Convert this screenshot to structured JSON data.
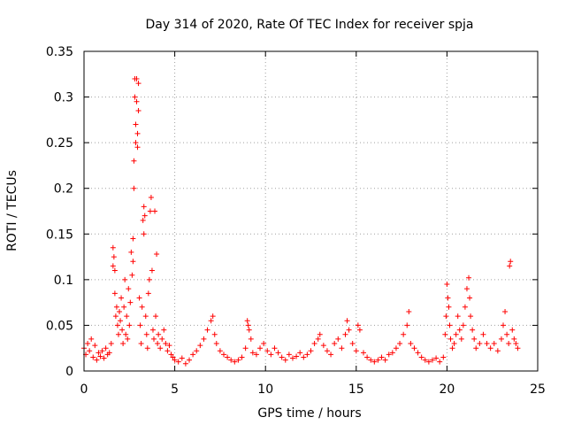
{
  "chart_data": {
    "type": "scatter",
    "title": "Day 314 of 2020, Rate Of TEC Index for receiver spja",
    "xlabel": "GPS time / hours",
    "ylabel": "ROTI / TECUs",
    "xlim": [
      0,
      25
    ],
    "ylim": [
      0,
      0.35
    ],
    "x_ticks": [
      "0",
      "5",
      "10",
      "15",
      "20",
      "25"
    ],
    "y_ticks": [
      "0",
      "0.05",
      "0.1",
      "0.15",
      "0.2",
      "0.25",
      "0.3",
      "0.35"
    ],
    "grid": true,
    "series": [
      {
        "name": "ROTI",
        "color": "#ff0000",
        "marker": "plus",
        "points": [
          [
            0.0,
            0.025
          ],
          [
            0.1,
            0.018
          ],
          [
            0.2,
            0.03
          ],
          [
            0.3,
            0.022
          ],
          [
            0.4,
            0.035
          ],
          [
            0.5,
            0.015
          ],
          [
            0.6,
            0.028
          ],
          [
            0.7,
            0.012
          ],
          [
            0.8,
            0.02
          ],
          [
            0.9,
            0.016
          ],
          [
            1.0,
            0.022
          ],
          [
            1.1,
            0.014
          ],
          [
            1.2,
            0.025
          ],
          [
            1.3,
            0.018
          ],
          [
            1.4,
            0.02
          ],
          [
            1.5,
            0.03
          ],
          [
            1.6,
            0.115
          ],
          [
            1.6,
            0.135
          ],
          [
            1.65,
            0.125
          ],
          [
            1.7,
            0.11
          ],
          [
            1.7,
            0.085
          ],
          [
            1.75,
            0.06
          ],
          [
            1.8,
            0.07
          ],
          [
            1.85,
            0.05
          ],
          [
            1.9,
            0.04
          ],
          [
            1.95,
            0.065
          ],
          [
            2.0,
            0.055
          ],
          [
            2.05,
            0.08
          ],
          [
            2.1,
            0.045
          ],
          [
            2.15,
            0.03
          ],
          [
            2.2,
            0.07
          ],
          [
            2.25,
            0.1
          ],
          [
            2.3,
            0.04
          ],
          [
            2.35,
            0.06
          ],
          [
            2.4,
            0.035
          ],
          [
            2.45,
            0.09
          ],
          [
            2.5,
            0.05
          ],
          [
            2.55,
            0.075
          ],
          [
            2.6,
            0.13
          ],
          [
            2.65,
            0.105
          ],
          [
            2.7,
            0.145
          ],
          [
            2.7,
            0.12
          ],
          [
            2.75,
            0.23
          ],
          [
            2.75,
            0.2
          ],
          [
            2.8,
            0.3
          ],
          [
            2.8,
            0.32
          ],
          [
            2.85,
            0.27
          ],
          [
            2.85,
            0.25
          ],
          [
            2.9,
            0.32
          ],
          [
            2.9,
            0.295
          ],
          [
            2.95,
            0.26
          ],
          [
            2.95,
            0.245
          ],
          [
            3.0,
            0.285
          ],
          [
            3.0,
            0.315
          ],
          [
            3.05,
            0.08
          ],
          [
            3.1,
            0.05
          ],
          [
            3.15,
            0.03
          ],
          [
            3.2,
            0.07
          ],
          [
            3.25,
            0.165
          ],
          [
            3.3,
            0.18
          ],
          [
            3.3,
            0.15
          ],
          [
            3.35,
            0.17
          ],
          [
            3.4,
            0.06
          ],
          [
            3.45,
            0.04
          ],
          [
            3.5,
            0.025
          ],
          [
            3.55,
            0.085
          ],
          [
            3.6,
            0.1
          ],
          [
            3.65,
            0.175
          ],
          [
            3.7,
            0.19
          ],
          [
            3.75,
            0.11
          ],
          [
            3.8,
            0.045
          ],
          [
            3.85,
            0.035
          ],
          [
            3.9,
            0.175
          ],
          [
            3.95,
            0.06
          ],
          [
            4.0,
            0.128
          ],
          [
            4.05,
            0.03
          ],
          [
            4.1,
            0.04
          ],
          [
            4.2,
            0.025
          ],
          [
            4.3,
            0.035
          ],
          [
            4.4,
            0.045
          ],
          [
            4.5,
            0.03
          ],
          [
            4.6,
            0.022
          ],
          [
            4.7,
            0.028
          ],
          [
            4.8,
            0.018
          ],
          [
            4.9,
            0.015
          ],
          [
            5.0,
            0.012
          ],
          [
            5.2,
            0.01
          ],
          [
            5.4,
            0.014
          ],
          [
            5.6,
            0.008
          ],
          [
            5.8,
            0.012
          ],
          [
            6.0,
            0.018
          ],
          [
            6.2,
            0.022
          ],
          [
            6.4,
            0.028
          ],
          [
            6.6,
            0.035
          ],
          [
            6.8,
            0.045
          ],
          [
            7.0,
            0.055
          ],
          [
            7.1,
            0.06
          ],
          [
            7.2,
            0.04
          ],
          [
            7.3,
            0.03
          ],
          [
            7.5,
            0.022
          ],
          [
            7.7,
            0.018
          ],
          [
            7.9,
            0.015
          ],
          [
            8.1,
            0.012
          ],
          [
            8.3,
            0.01
          ],
          [
            8.5,
            0.012
          ],
          [
            8.7,
            0.015
          ],
          [
            8.9,
            0.025
          ],
          [
            9.0,
            0.055
          ],
          [
            9.05,
            0.05
          ],
          [
            9.1,
            0.045
          ],
          [
            9.2,
            0.035
          ],
          [
            9.3,
            0.02
          ],
          [
            9.5,
            0.018
          ],
          [
            9.7,
            0.025
          ],
          [
            9.9,
            0.03
          ],
          [
            10.1,
            0.022
          ],
          [
            10.3,
            0.018
          ],
          [
            10.5,
            0.025
          ],
          [
            10.7,
            0.02
          ],
          [
            10.9,
            0.015
          ],
          [
            11.1,
            0.012
          ],
          [
            11.3,
            0.018
          ],
          [
            11.5,
            0.014
          ],
          [
            11.7,
            0.016
          ],
          [
            11.9,
            0.02
          ],
          [
            12.1,
            0.015
          ],
          [
            12.3,
            0.018
          ],
          [
            12.5,
            0.022
          ],
          [
            12.7,
            0.03
          ],
          [
            12.9,
            0.035
          ],
          [
            13.0,
            0.04
          ],
          [
            13.2,
            0.028
          ],
          [
            13.4,
            0.022
          ],
          [
            13.6,
            0.018
          ],
          [
            13.8,
            0.03
          ],
          [
            14.0,
            0.035
          ],
          [
            14.2,
            0.025
          ],
          [
            14.4,
            0.04
          ],
          [
            14.5,
            0.055
          ],
          [
            14.6,
            0.045
          ],
          [
            14.8,
            0.03
          ],
          [
            15.0,
            0.022
          ],
          [
            15.1,
            0.05
          ],
          [
            15.2,
            0.045
          ],
          [
            15.4,
            0.02
          ],
          [
            15.6,
            0.015
          ],
          [
            15.8,
            0.012
          ],
          [
            16.0,
            0.01
          ],
          [
            16.2,
            0.012
          ],
          [
            16.4,
            0.015
          ],
          [
            16.6,
            0.012
          ],
          [
            16.8,
            0.018
          ],
          [
            17.0,
            0.02
          ],
          [
            17.2,
            0.025
          ],
          [
            17.4,
            0.03
          ],
          [
            17.6,
            0.04
          ],
          [
            17.8,
            0.05
          ],
          [
            17.9,
            0.065
          ],
          [
            18.0,
            0.03
          ],
          [
            18.2,
            0.025
          ],
          [
            18.4,
            0.02
          ],
          [
            18.6,
            0.015
          ],
          [
            18.8,
            0.012
          ],
          [
            19.0,
            0.01
          ],
          [
            19.2,
            0.012
          ],
          [
            19.4,
            0.014
          ],
          [
            19.6,
            0.01
          ],
          [
            19.8,
            0.015
          ],
          [
            19.9,
            0.04
          ],
          [
            19.95,
            0.06
          ],
          [
            20.0,
            0.095
          ],
          [
            20.05,
            0.08
          ],
          [
            20.1,
            0.07
          ],
          [
            20.15,
            0.05
          ],
          [
            20.2,
            0.035
          ],
          [
            20.3,
            0.025
          ],
          [
            20.4,
            0.03
          ],
          [
            20.5,
            0.04
          ],
          [
            20.6,
            0.06
          ],
          [
            20.7,
            0.045
          ],
          [
            20.8,
            0.035
          ],
          [
            20.9,
            0.05
          ],
          [
            21.0,
            0.07
          ],
          [
            21.1,
            0.09
          ],
          [
            21.2,
            0.102
          ],
          [
            21.25,
            0.08
          ],
          [
            21.3,
            0.06
          ],
          [
            21.4,
            0.045
          ],
          [
            21.5,
            0.035
          ],
          [
            21.6,
            0.025
          ],
          [
            21.8,
            0.03
          ],
          [
            22.0,
            0.04
          ],
          [
            22.2,
            0.03
          ],
          [
            22.4,
            0.025
          ],
          [
            22.6,
            0.03
          ],
          [
            22.8,
            0.022
          ],
          [
            23.0,
            0.035
          ],
          [
            23.1,
            0.05
          ],
          [
            23.2,
            0.065
          ],
          [
            23.3,
            0.04
          ],
          [
            23.4,
            0.03
          ],
          [
            23.45,
            0.115
          ],
          [
            23.5,
            0.12
          ],
          [
            23.6,
            0.045
          ],
          [
            23.7,
            0.035
          ],
          [
            23.8,
            0.03
          ],
          [
            23.9,
            0.025
          ]
        ]
      }
    ]
  }
}
